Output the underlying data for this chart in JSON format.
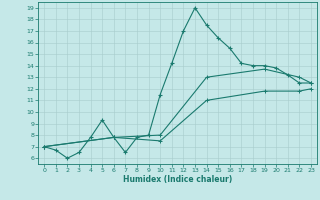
{
  "xlabel": "Humidex (Indice chaleur)",
  "bg_color": "#c5e8e8",
  "line_color": "#1a7a6e",
  "xlim": [
    -0.5,
    23.5
  ],
  "ylim": [
    5.5,
    19.5
  ],
  "xticks": [
    0,
    1,
    2,
    3,
    4,
    5,
    6,
    7,
    8,
    9,
    10,
    11,
    12,
    13,
    14,
    15,
    16,
    17,
    18,
    19,
    20,
    21,
    22,
    23
  ],
  "yticks": [
    6,
    7,
    8,
    9,
    10,
    11,
    12,
    13,
    14,
    15,
    16,
    17,
    18,
    19
  ],
  "line1_x": [
    0,
    1,
    2,
    3,
    4,
    5,
    6,
    7,
    8,
    9,
    10,
    11,
    12,
    13,
    14,
    15,
    16,
    17,
    18,
    19,
    20,
    21,
    22,
    23
  ],
  "line1_y": [
    7.0,
    6.7,
    6.0,
    6.5,
    7.8,
    9.3,
    7.8,
    6.5,
    7.8,
    8.0,
    11.5,
    14.2,
    17.0,
    19.0,
    17.5,
    16.4,
    15.5,
    14.2,
    14.0,
    14.0,
    13.8,
    13.2,
    12.5,
    12.5
  ],
  "line2_x": [
    0,
    6,
    10,
    14,
    19,
    22,
    23
  ],
  "line2_y": [
    7.0,
    7.8,
    8.0,
    13.0,
    13.7,
    13.0,
    12.5
  ],
  "line3_x": [
    0,
    6,
    10,
    14,
    19,
    22,
    23
  ],
  "line3_y": [
    7.0,
    7.8,
    7.5,
    11.0,
    11.8,
    11.8,
    12.0
  ]
}
